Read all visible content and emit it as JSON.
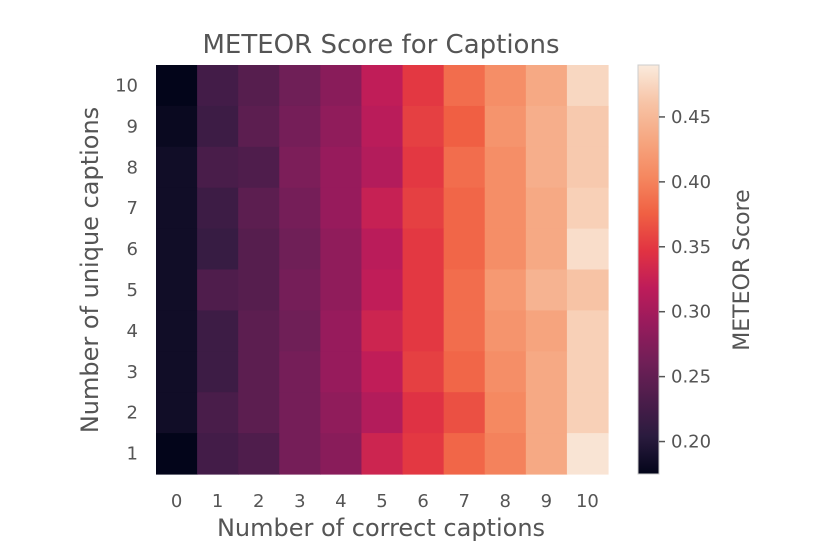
{
  "chart_data": {
    "type": "heatmap",
    "title": "METEOR Score for Captions",
    "xlabel": "Number of correct captions",
    "ylabel": "Number of unique captions",
    "x_categories": [
      "0",
      "1",
      "2",
      "3",
      "4",
      "5",
      "6",
      "7",
      "8",
      "9",
      "10"
    ],
    "y_categories": [
      "10",
      "9",
      "8",
      "7",
      "6",
      "5",
      "4",
      "3",
      "2",
      "1"
    ],
    "values": [
      [
        0.175,
        0.225,
        0.24,
        0.26,
        0.28,
        0.32,
        0.35,
        0.385,
        0.41,
        0.435,
        0.475
      ],
      [
        0.18,
        0.22,
        0.245,
        0.265,
        0.285,
        0.315,
        0.355,
        0.375,
        0.415,
        0.44,
        0.465
      ],
      [
        0.185,
        0.23,
        0.235,
        0.27,
        0.29,
        0.31,
        0.35,
        0.385,
        0.41,
        0.44,
        0.465
      ],
      [
        0.185,
        0.22,
        0.245,
        0.265,
        0.29,
        0.325,
        0.355,
        0.38,
        0.41,
        0.435,
        0.47
      ],
      [
        0.185,
        0.215,
        0.24,
        0.26,
        0.285,
        0.315,
        0.35,
        0.38,
        0.41,
        0.435,
        0.48
      ],
      [
        0.185,
        0.235,
        0.24,
        0.265,
        0.285,
        0.32,
        0.35,
        0.385,
        0.42,
        0.445,
        0.46
      ],
      [
        0.185,
        0.22,
        0.245,
        0.26,
        0.29,
        0.33,
        0.35,
        0.385,
        0.415,
        0.43,
        0.47
      ],
      [
        0.185,
        0.22,
        0.245,
        0.265,
        0.29,
        0.32,
        0.355,
        0.38,
        0.41,
        0.435,
        0.47
      ],
      [
        0.185,
        0.23,
        0.245,
        0.265,
        0.285,
        0.31,
        0.345,
        0.365,
        0.405,
        0.435,
        0.47
      ],
      [
        0.175,
        0.225,
        0.235,
        0.265,
        0.28,
        0.33,
        0.35,
        0.38,
        0.4,
        0.435,
        0.485
      ]
    ],
    "colorbar": {
      "label": "METEOR Score",
      "ticks": [
        "0.20",
        "0.25",
        "0.30",
        "0.35",
        "0.40",
        "0.45"
      ],
      "range": [
        0.175,
        0.49
      ]
    },
    "colormap": [
      "#03051a",
      "#2a1b3e",
      "#4c1d4b",
      "#701f57",
      "#961b5c",
      "#be1c5a",
      "#e13342",
      "#f06043",
      "#f58860",
      "#f6a781",
      "#f7c4a7",
      "#faebdd"
    ],
    "grid": false
  }
}
